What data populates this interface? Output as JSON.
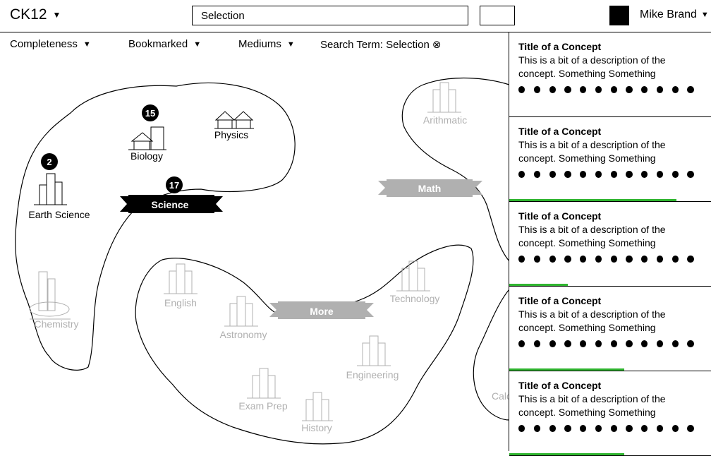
{
  "header": {
    "brand": "CK12",
    "search_value": "Selection",
    "user_name": "Mike Brand"
  },
  "filters": [
    {
      "label": "Completeness"
    },
    {
      "label": "Bookmarked"
    },
    {
      "label": "Mediums"
    },
    {
      "label": "Search Term: Selection",
      "clear_icon": "⊗"
    }
  ],
  "map": {
    "science": {
      "banner": "Science",
      "count": "17",
      "subjects": [
        {
          "label": "Earth Science",
          "count": "2"
        },
        {
          "label": "Biology",
          "count": "15"
        },
        {
          "label": "Physics"
        },
        {
          "label": "Chemistry"
        }
      ]
    },
    "math": {
      "banner": "Math",
      "subjects": [
        {
          "label": "Arithmatic"
        },
        {
          "label": "Calc"
        }
      ]
    },
    "more": {
      "banner": "More",
      "subjects": [
        {
          "label": "English"
        },
        {
          "label": "Astronomy"
        },
        {
          "label": "Technology"
        },
        {
          "label": "Engineering"
        },
        {
          "label": "Exam Prep"
        },
        {
          "label": "History"
        }
      ]
    }
  },
  "concepts": [
    {
      "title": "Title of a Concept",
      "description": "This is a bit of a description of the concept. Something Something",
      "progress": 0
    },
    {
      "title": "Title of a Concept",
      "description": "This is a bit of a description of the concept. Something Something",
      "progress": 0.83
    },
    {
      "title": "Title of a Concept",
      "description": "This is a bit of a description of the concept. Something Something",
      "progress": 0.29
    },
    {
      "title": "Title of a Concept",
      "description": "This is a bit of a description of the concept. Something Something",
      "progress": 0.57
    },
    {
      "title": "Title of a Concept",
      "description": "This is a bit of a description of the concept. Something Something",
      "progress": 0.57
    }
  ],
  "colors": {
    "progress": "#2fb52f",
    "dimmed": "#b0b0b0"
  }
}
